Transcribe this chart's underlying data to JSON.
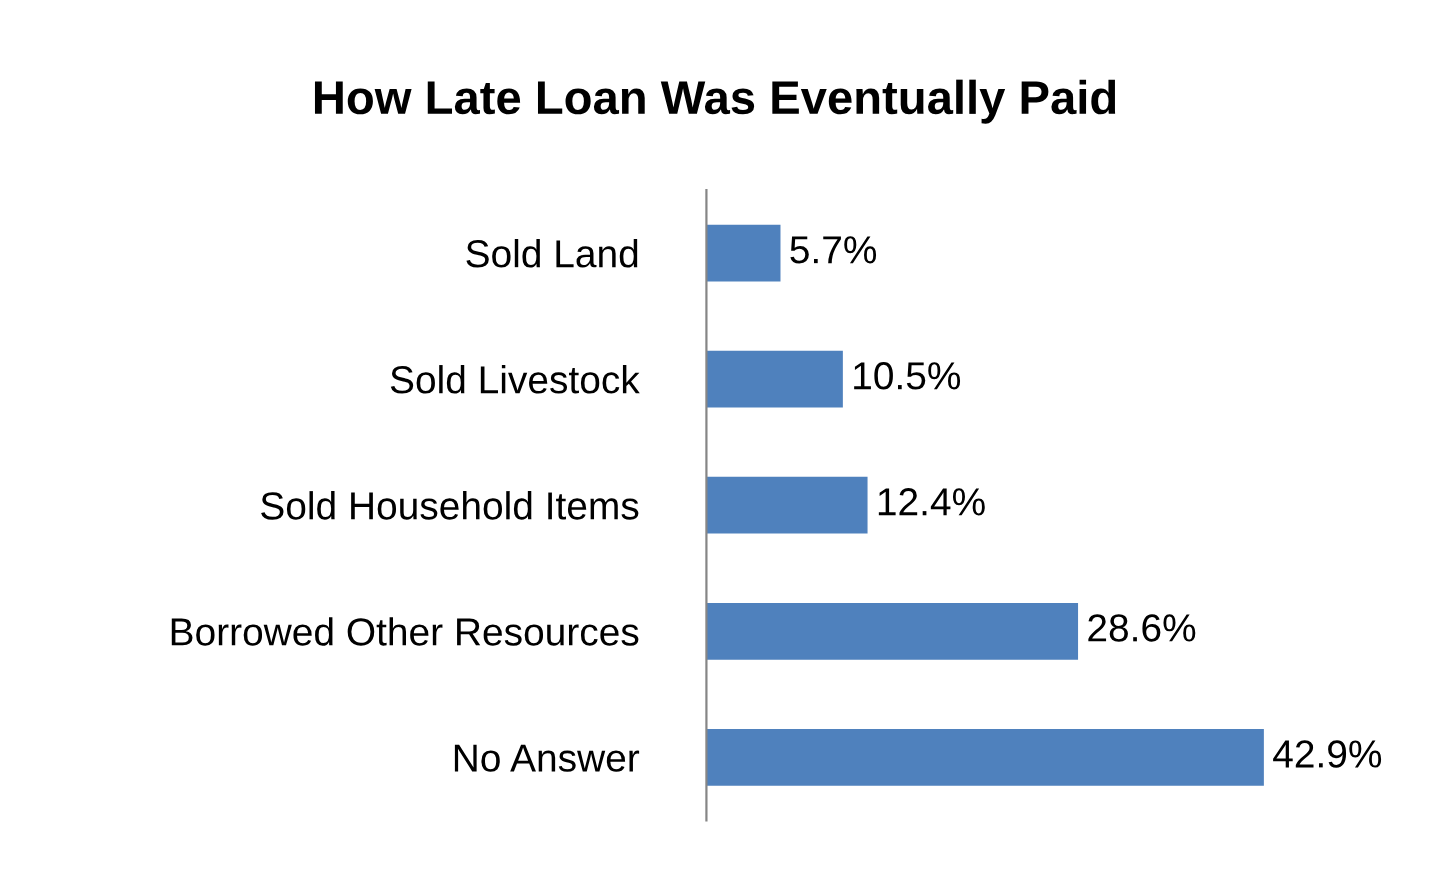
{
  "chart_data": {
    "type": "bar",
    "orientation": "horizontal",
    "title": "How Late Loan Was Eventually Paid",
    "categories": [
      "Sold Land",
      "Sold Livestock",
      "Sold Household Items",
      "Borrowed Other Resources",
      "No Answer"
    ],
    "values": [
      5.7,
      10.5,
      12.4,
      28.6,
      42.9
    ],
    "value_labels": [
      "5.7%",
      "10.5%",
      "12.4%",
      "28.6%",
      "42.9%"
    ],
    "color": "#4f81bd",
    "grid": false,
    "legend": false
  }
}
